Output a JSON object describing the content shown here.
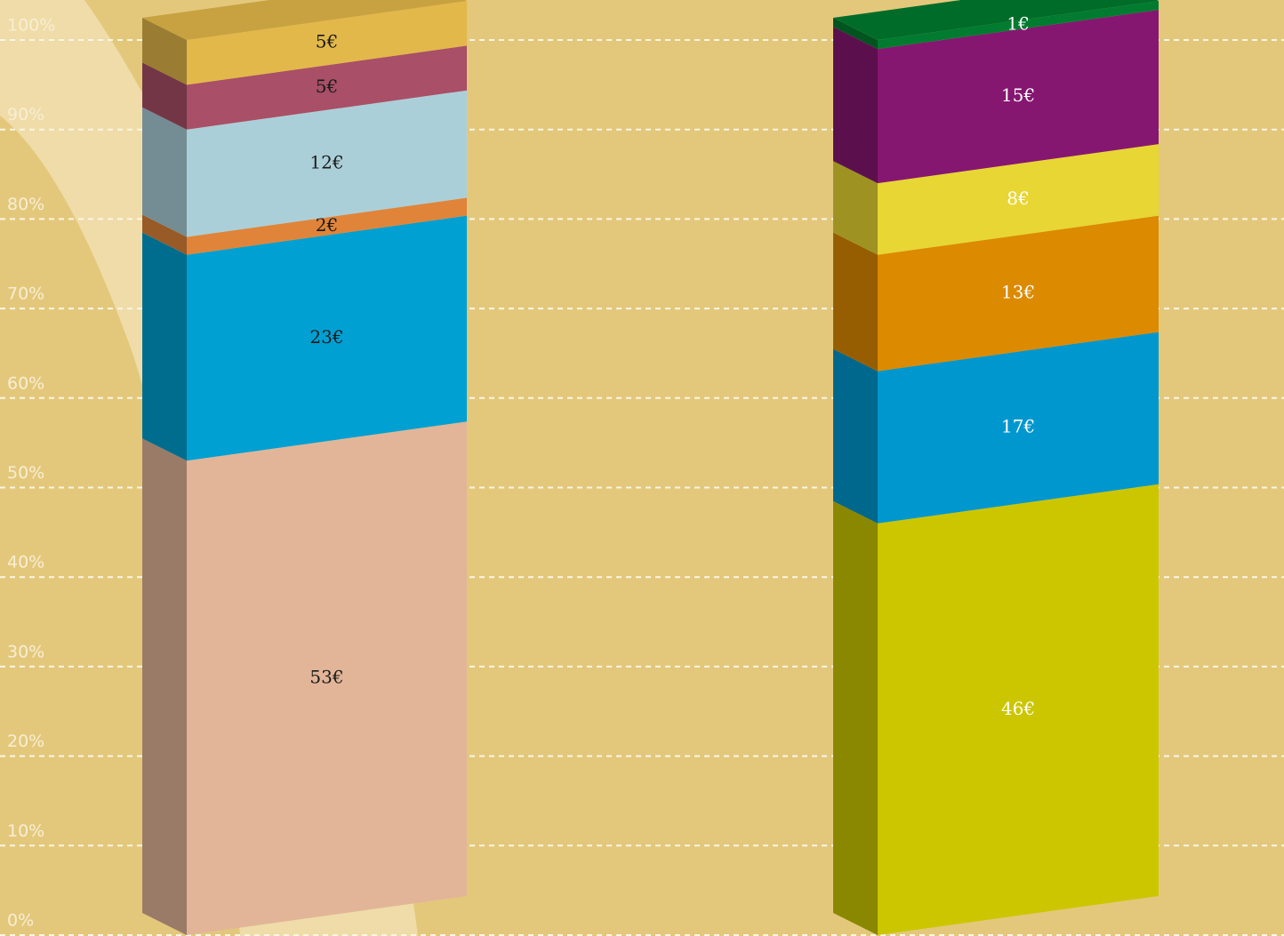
{
  "chart_data": {
    "type": "stacked-bar-3d",
    "categories": [
      null,
      null
    ],
    "stacks": [
      {
        "values": [
          53,
          23,
          2,
          12,
          5,
          5
        ],
        "value_labels": [
          "53€",
          "23€",
          "2€",
          "12€",
          "5€",
          "5€"
        ],
        "colors": [
          "#e2b598",
          "#00a0d2",
          "#e0843a",
          "#abcfd9",
          "#a94f68",
          "#e3b84a"
        ],
        "label_color": "#1a1a1a"
      },
      {
        "values": [
          46,
          17,
          13,
          8,
          15,
          1
        ],
        "value_labels": [
          "46€",
          "17€",
          "13€",
          "8€",
          "15€",
          "1€"
        ],
        "colors": [
          "#cbc600",
          "#0097cf",
          "#dc8a00",
          "#e8d634",
          "#861771",
          "#007b2f"
        ],
        "label_color": "#ffffff"
      }
    ],
    "ylim": [
      0,
      100
    ],
    "yticks": [
      {
        "value": 0,
        "label": "0%"
      },
      {
        "value": 10,
        "label": "10%"
      },
      {
        "value": 20,
        "label": "20%"
      },
      {
        "value": 30,
        "label": "30%"
      },
      {
        "value": 40,
        "label": "40%"
      },
      {
        "value": 50,
        "label": "50%"
      },
      {
        "value": 60,
        "label": "60%"
      },
      {
        "value": 70,
        "label": "70%"
      },
      {
        "value": 80,
        "label": "80%"
      },
      {
        "value": 90,
        "label": "90%"
      },
      {
        "value": 100,
        "label": "100%"
      }
    ],
    "grid": true
  }
}
